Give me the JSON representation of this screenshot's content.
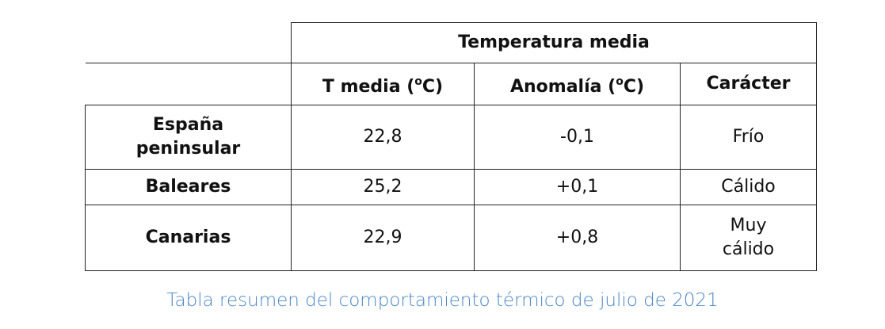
{
  "table": {
    "group_header": "Temperatura media",
    "columns": [
      {
        "label": "T media (",
        "unit_sup": "o",
        "unit": "C)"
      },
      {
        "label": "Anomalía (",
        "unit_sup": "o",
        "unit": "C)"
      },
      {
        "label": "Carácter"
      }
    ],
    "rows": [
      {
        "region_line1": "España",
        "region_line2": "peninsular",
        "t_media": "22,8",
        "anomalia": "-0,1",
        "caracter_line1": "Frío",
        "caracter_line2": ""
      },
      {
        "region_line1": "Baleares",
        "region_line2": "",
        "t_media": "25,2",
        "anomalia": "+0,1",
        "caracter_line1": "Cálido",
        "caracter_line2": ""
      },
      {
        "region_line1": "Canarias",
        "region_line2": "",
        "t_media": "22,9",
        "anomalia": "+0,8",
        "caracter_line1": "Muy",
        "caracter_line2": "cálido"
      }
    ]
  },
  "caption": "Tabla resumen del comportamiento térmico de julio de 2021",
  "colors": {
    "caption": "#4a86c5",
    "border": "#222222"
  }
}
